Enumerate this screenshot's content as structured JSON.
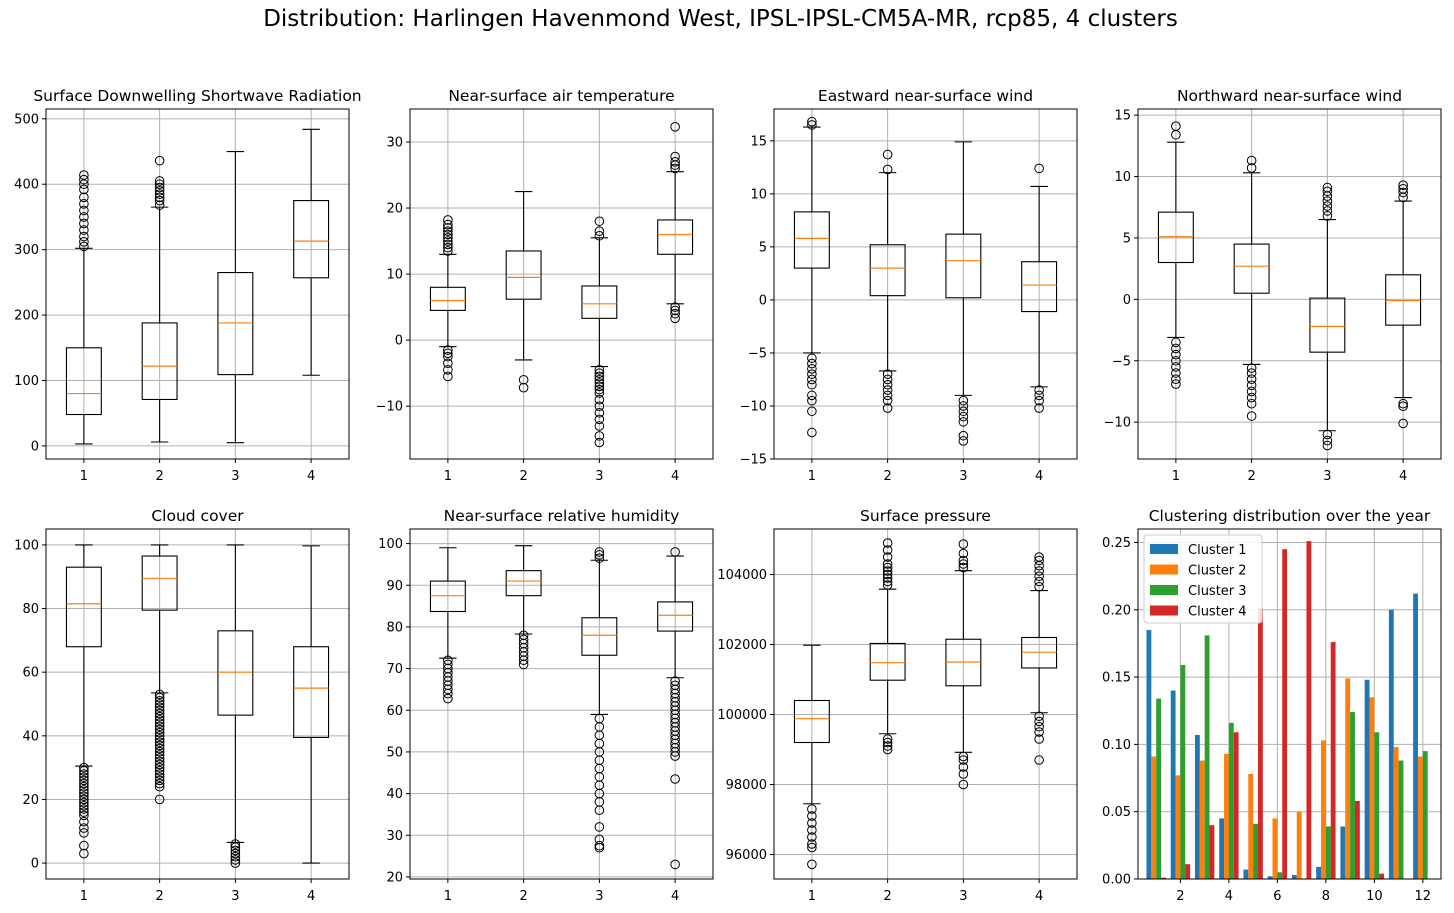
{
  "figure": {
    "title": "Distribution: Harlingen Havenmond West, IPSL-IPSL-CM5A-MR, rcp85, 4 clusters"
  },
  "style": {
    "box_color": "#000000",
    "median_color": "#ff7f0e",
    "grid_color": "#b0b0b0",
    "cluster_colors": [
      "#1f77b4",
      "#ff7f0e",
      "#2ca02c",
      "#d62728"
    ]
  },
  "chart_data": [
    {
      "type": "boxplot",
      "title": "Surface Downwelling Shortwave Radiation",
      "categories": [
        "1",
        "2",
        "3",
        "4"
      ],
      "ylim": [
        -20,
        515
      ],
      "yticks": [
        0,
        100,
        200,
        300,
        400,
        500
      ],
      "ytick_labels": [
        "0",
        "100",
        "200",
        "300",
        "400",
        "500"
      ],
      "grid": true,
      "boxes": [
        {
          "whislo": 3,
          "q1": 48,
          "med": 80,
          "q3": 150,
          "whishi": 302,
          "fliers": [
            305,
            312,
            320,
            330,
            340,
            350,
            360,
            370,
            380,
            392,
            400,
            407,
            414
          ]
        },
        {
          "whislo": 6,
          "q1": 71,
          "med": 122,
          "q3": 188,
          "whishi": 365,
          "fliers": [
            368,
            375,
            380,
            385,
            390,
            395,
            400,
            405,
            436
          ]
        },
        {
          "whislo": 5,
          "q1": 109,
          "med": 188,
          "q3": 265,
          "whishi": 450,
          "fliers": []
        },
        {
          "whislo": 108,
          "q1": 257,
          "med": 313,
          "q3": 375,
          "whishi": 484,
          "fliers": []
        }
      ]
    },
    {
      "type": "boxplot",
      "title": "Near-surface air temperature",
      "categories": [
        "1",
        "2",
        "3",
        "4"
      ],
      "ylim": [
        -18,
        35
      ],
      "yticks": [
        -10,
        0,
        10,
        20,
        30
      ],
      "ytick_labels": [
        "−10",
        "0",
        "10",
        "20",
        "30"
      ],
      "grid": true,
      "boxes": [
        {
          "whislo": -1,
          "q1": 4.5,
          "med": 6,
          "q3": 8,
          "whishi": 13,
          "fliers": [
            -1.5,
            -2,
            -2.5,
            -3.5,
            -4.5,
            -5.5,
            13.5,
            14,
            14.5,
            15,
            15.5,
            16,
            16.5,
            17,
            17.5,
            18.2
          ]
        },
        {
          "whislo": -3,
          "q1": 6.2,
          "med": 9.5,
          "q3": 13.5,
          "whishi": 22.5,
          "fliers": [
            -6,
            -7.2
          ]
        },
        {
          "whislo": -4,
          "q1": 3.3,
          "med": 5.5,
          "q3": 8.2,
          "whishi": 15.5,
          "fliers": [
            -4.5,
            -5,
            -5.5,
            -6,
            -6.5,
            -7,
            -7.5,
            -8,
            -9,
            -10,
            -11,
            -12,
            -13,
            -14.5,
            -15.5,
            15.8,
            16.5,
            18
          ]
        },
        {
          "whislo": 5.5,
          "q1": 13,
          "med": 16,
          "q3": 18.2,
          "whishi": 25.5,
          "fliers": [
            5,
            4.5,
            4,
            3.3,
            26,
            26.5,
            27,
            27.8,
            32.3
          ]
        }
      ]
    },
    {
      "type": "boxplot",
      "title": "Eastward near-surface wind",
      "categories": [
        "1",
        "2",
        "3",
        "4"
      ],
      "ylim": [
        -15,
        18
      ],
      "yticks": [
        -15,
        -10,
        -5,
        0,
        5,
        10,
        15
      ],
      "ytick_labels": [
        "−15",
        "−10",
        "−5",
        "0",
        "5",
        "10",
        "15"
      ],
      "grid": true,
      "boxes": [
        {
          "whislo": -5,
          "q1": 3,
          "med": 5.8,
          "q3": 8.3,
          "whishi": 16.3,
          "fliers": [
            -5.5,
            -6,
            -6.5,
            -7,
            -7.5,
            -8,
            -9,
            -9.5,
            -10.5,
            -12.5,
            16.5,
            16.8
          ]
        },
        {
          "whislo": -6.7,
          "q1": 0.4,
          "med": 3,
          "q3": 5.2,
          "whishi": 12,
          "fliers": [
            -7,
            -7.5,
            -8,
            -8.5,
            -9,
            -9.5,
            -10.2,
            12.3,
            13.7
          ]
        },
        {
          "whislo": -9,
          "q1": 0.2,
          "med": 3.7,
          "q3": 6.2,
          "whishi": 14.9,
          "fliers": [
            -9.5,
            -10,
            -10.5,
            -11,
            -11.5,
            -12.8,
            -13.3
          ]
        },
        {
          "whislo": -8.2,
          "q1": -1.1,
          "med": 1.4,
          "q3": 3.6,
          "whishi": 10.7,
          "fliers": [
            -8.5,
            -9,
            -9.5,
            -10.2,
            12.4
          ]
        }
      ]
    },
    {
      "type": "boxplot",
      "title": "Northward near-surface wind",
      "categories": [
        "1",
        "2",
        "3",
        "4"
      ],
      "ylim": [
        -13,
        15.5
      ],
      "yticks": [
        -10,
        -5,
        0,
        5,
        10,
        15
      ],
      "ytick_labels": [
        "−10",
        "−5",
        "0",
        "5",
        "10",
        "15"
      ],
      "grid": true,
      "boxes": [
        {
          "whislo": -3.1,
          "q1": 3,
          "med": 5.1,
          "q3": 7.1,
          "whishi": 12.8,
          "fliers": [
            -3.5,
            -4,
            -4.5,
            -5,
            -5.5,
            -6,
            -6.5,
            -6.9,
            13.4,
            14.1
          ]
        },
        {
          "whislo": -5.3,
          "q1": 0.5,
          "med": 2.7,
          "q3": 4.5,
          "whishi": 10.3,
          "fliers": [
            -5.6,
            -6,
            -6.5,
            -7,
            -7.5,
            -8,
            -8.5,
            -9.5,
            10.7,
            11.3
          ]
        },
        {
          "whislo": -10.7,
          "q1": -4.3,
          "med": -2.2,
          "q3": 0.1,
          "whishi": 6.5,
          "fliers": [
            6.8,
            7.2,
            7.6,
            8,
            8.4,
            8.8,
            9.1,
            -11,
            -11.5,
            -11.9
          ]
        },
        {
          "whislo": -8,
          "q1": -2.1,
          "med": -0.1,
          "q3": 2,
          "whishi": 8,
          "fliers": [
            8.3,
            8.7,
            9,
            9.3,
            -8.5,
            -8.7,
            -10.1
          ]
        }
      ]
    },
    {
      "type": "boxplot",
      "title": "Cloud cover",
      "categories": [
        "1",
        "2",
        "3",
        "4"
      ],
      "ylim": [
        -5,
        105
      ],
      "yticks": [
        0,
        20,
        40,
        60,
        80,
        100
      ],
      "ytick_labels": [
        "0",
        "20",
        "40",
        "60",
        "80",
        "100"
      ],
      "grid": true,
      "boxes": [
        {
          "whislo": 30.5,
          "q1": 68,
          "med": 81.5,
          "q3": 93,
          "whishi": 100,
          "fliers": [
            30,
            29,
            28,
            27,
            26,
            25,
            24,
            23,
            22,
            21,
            20,
            19,
            18,
            17,
            16,
            15,
            13,
            11,
            9.5,
            5.5,
            3
          ]
        },
        {
          "whislo": 53.5,
          "q1": 79.5,
          "med": 89.5,
          "q3": 96.5,
          "whishi": 100,
          "fliers": [
            53,
            52,
            51,
            50,
            49,
            48,
            47,
            46,
            45,
            44,
            43,
            42,
            41,
            40,
            39,
            38,
            37,
            36,
            35,
            34,
            33,
            32,
            31,
            30,
            29,
            28,
            27,
            26,
            25,
            24,
            20
          ]
        },
        {
          "whislo": 6.5,
          "q1": 46.5,
          "med": 60,
          "q3": 73,
          "whishi": 100,
          "fliers": [
            6,
            5,
            4,
            3,
            2,
            1,
            0
          ]
        },
        {
          "whislo": 0,
          "q1": 39.5,
          "med": 55,
          "q3": 68,
          "whishi": 99.7,
          "fliers": []
        }
      ]
    },
    {
      "type": "boxplot",
      "title": "Near-surface relative humidity",
      "categories": [
        "1",
        "2",
        "3",
        "4"
      ],
      "ylim": [
        19.5,
        103.5
      ],
      "yticks": [
        20,
        30,
        40,
        50,
        60,
        70,
        80,
        90,
        100
      ],
      "ytick_labels": [
        "20",
        "30",
        "40",
        "50",
        "60",
        "70",
        "80",
        "90",
        "100"
      ],
      "grid": true,
      "boxes": [
        {
          "whislo": 72.5,
          "q1": 83.7,
          "med": 87.5,
          "q3": 91,
          "whishi": 99,
          "fliers": [
            72,
            71,
            70,
            69,
            68,
            67,
            66,
            65,
            64,
            62.8
          ]
        },
        {
          "whislo": 78.3,
          "q1": 87.5,
          "med": 91,
          "q3": 93.5,
          "whishi": 99.5,
          "fliers": [
            78,
            77,
            76,
            75,
            74,
            73,
            72,
            71
          ]
        },
        {
          "whislo": 59,
          "q1": 73.2,
          "med": 78,
          "q3": 82.2,
          "whishi": 96,
          "fliers": [
            58,
            56,
            54,
            52,
            50,
            48,
            46,
            44,
            42,
            40,
            38,
            36,
            32,
            29,
            27.5,
            27,
            96.5,
            97.3,
            98
          ]
        },
        {
          "whislo": 67.8,
          "q1": 79,
          "med": 82.8,
          "q3": 86,
          "whishi": 97,
          "fliers": [
            67,
            66,
            65,
            64,
            63,
            62,
            61,
            60,
            59,
            58,
            57,
            56,
            55,
            54,
            53,
            52,
            51,
            50,
            49,
            43.5,
            23,
            98
          ]
        }
      ]
    },
    {
      "type": "boxplot",
      "title": "Surface pressure",
      "categories": [
        "1",
        "2",
        "3",
        "4"
      ],
      "ylim": [
        95300,
        105300
      ],
      "yticks": [
        96000,
        98000,
        100000,
        102000,
        104000
      ],
      "ytick_labels": [
        "96000",
        "98000",
        "100000",
        "102000",
        "104000"
      ],
      "grid": true,
      "boxes": [
        {
          "whislo": 97450,
          "q1": 99200,
          "med": 99880,
          "q3": 100400,
          "whishi": 101980,
          "fliers": [
            97300,
            97100,
            96900,
            96700,
            96500,
            96300,
            96200,
            95720
          ]
        },
        {
          "whislo": 99450,
          "q1": 100980,
          "med": 101480,
          "q3": 102030,
          "whishi": 103580,
          "fliers": [
            99300,
            99200,
            99100,
            99000,
            103700,
            103800,
            103900,
            104000,
            104100,
            104200,
            104300,
            104500,
            104700,
            104900
          ]
        },
        {
          "whislo": 98920,
          "q1": 100820,
          "med": 101500,
          "q3": 102150,
          "whishi": 104110,
          "fliers": [
            98800,
            98700,
            98500,
            98300,
            98000,
            104200,
            104300,
            104400,
            104600,
            104870
          ]
        },
        {
          "whislo": 100050,
          "q1": 101330,
          "med": 101780,
          "q3": 102200,
          "whishi": 103540,
          "fliers": [
            99950,
            99800,
            99650,
            99500,
            99300,
            98700,
            103650,
            103800,
            103950,
            104100,
            104250,
            104400,
            104500
          ]
        }
      ]
    },
    {
      "type": "bar",
      "title": "Clustering distribution over the year",
      "x": [
        1,
        2,
        3,
        4,
        5,
        6,
        7,
        8,
        9,
        10,
        11,
        12
      ],
      "xlim": [
        0.25,
        12.75
      ],
      "xticks": [
        2,
        4,
        6,
        8,
        10,
        12
      ],
      "ylim": [
        0,
        0.26
      ],
      "yticks": [
        0,
        0.05,
        0.1,
        0.15,
        0.2,
        0.25
      ],
      "ytick_labels": [
        "0.00",
        "0.05",
        "0.10",
        "0.15",
        "0.20",
        "0.25"
      ],
      "grid": true,
      "legend": "upper-left",
      "series": [
        {
          "name": "Cluster 1",
          "values": [
            0.185,
            0.14,
            0.107,
            0.045,
            0.007,
            0.002,
            0.003,
            0.009,
            0.039,
            0.148,
            0.2,
            0.212
          ]
        },
        {
          "name": "Cluster 2",
          "values": [
            0.091,
            0.077,
            0.088,
            0.093,
            0.078,
            0.045,
            0.05,
            0.103,
            0.149,
            0.135,
            0.098,
            0.091
          ]
        },
        {
          "name": "Cluster 3",
          "values": [
            0.134,
            0.159,
            0.181,
            0.116,
            0.041,
            0.005,
            0.0,
            0.039,
            0.124,
            0.109,
            0.088,
            0.095
          ]
        },
        {
          "name": "Cluster 4",
          "values": [
            0.001,
            0.011,
            0.04,
            0.109,
            0.201,
            0.245,
            0.251,
            0.176,
            0.058,
            0.004,
            0.0,
            0.0
          ]
        }
      ]
    }
  ]
}
